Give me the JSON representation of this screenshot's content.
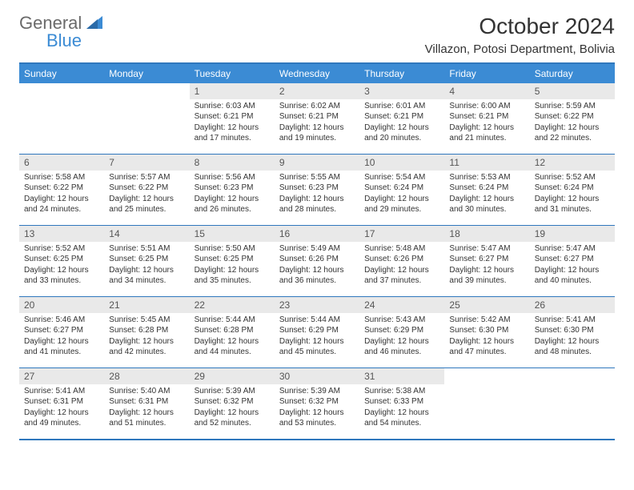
{
  "brand": {
    "part1": "General",
    "part2": "Blue"
  },
  "title": "October 2024",
  "subtitle": "Villazon, Potosi Department, Bolivia",
  "colors": {
    "header_bg": "#3b8bd4",
    "header_border": "#2f77bd",
    "daynum_bg": "#e9e9e9",
    "text": "#333333"
  },
  "day_names": [
    "Sunday",
    "Monday",
    "Tuesday",
    "Wednesday",
    "Thursday",
    "Friday",
    "Saturday"
  ],
  "weeks": [
    [
      {
        "blank": true
      },
      {
        "blank": true
      },
      {
        "n": "1",
        "sunrise": "Sunrise: 6:03 AM",
        "sunset": "Sunset: 6:21 PM",
        "daylight": "Daylight: 12 hours and 17 minutes."
      },
      {
        "n": "2",
        "sunrise": "Sunrise: 6:02 AM",
        "sunset": "Sunset: 6:21 PM",
        "daylight": "Daylight: 12 hours and 19 minutes."
      },
      {
        "n": "3",
        "sunrise": "Sunrise: 6:01 AM",
        "sunset": "Sunset: 6:21 PM",
        "daylight": "Daylight: 12 hours and 20 minutes."
      },
      {
        "n": "4",
        "sunrise": "Sunrise: 6:00 AM",
        "sunset": "Sunset: 6:21 PM",
        "daylight": "Daylight: 12 hours and 21 minutes."
      },
      {
        "n": "5",
        "sunrise": "Sunrise: 5:59 AM",
        "sunset": "Sunset: 6:22 PM",
        "daylight": "Daylight: 12 hours and 22 minutes."
      }
    ],
    [
      {
        "n": "6",
        "sunrise": "Sunrise: 5:58 AM",
        "sunset": "Sunset: 6:22 PM",
        "daylight": "Daylight: 12 hours and 24 minutes."
      },
      {
        "n": "7",
        "sunrise": "Sunrise: 5:57 AM",
        "sunset": "Sunset: 6:22 PM",
        "daylight": "Daylight: 12 hours and 25 minutes."
      },
      {
        "n": "8",
        "sunrise": "Sunrise: 5:56 AM",
        "sunset": "Sunset: 6:23 PM",
        "daylight": "Daylight: 12 hours and 26 minutes."
      },
      {
        "n": "9",
        "sunrise": "Sunrise: 5:55 AM",
        "sunset": "Sunset: 6:23 PM",
        "daylight": "Daylight: 12 hours and 28 minutes."
      },
      {
        "n": "10",
        "sunrise": "Sunrise: 5:54 AM",
        "sunset": "Sunset: 6:24 PM",
        "daylight": "Daylight: 12 hours and 29 minutes."
      },
      {
        "n": "11",
        "sunrise": "Sunrise: 5:53 AM",
        "sunset": "Sunset: 6:24 PM",
        "daylight": "Daylight: 12 hours and 30 minutes."
      },
      {
        "n": "12",
        "sunrise": "Sunrise: 5:52 AM",
        "sunset": "Sunset: 6:24 PM",
        "daylight": "Daylight: 12 hours and 31 minutes."
      }
    ],
    [
      {
        "n": "13",
        "sunrise": "Sunrise: 5:52 AM",
        "sunset": "Sunset: 6:25 PM",
        "daylight": "Daylight: 12 hours and 33 minutes."
      },
      {
        "n": "14",
        "sunrise": "Sunrise: 5:51 AM",
        "sunset": "Sunset: 6:25 PM",
        "daylight": "Daylight: 12 hours and 34 minutes."
      },
      {
        "n": "15",
        "sunrise": "Sunrise: 5:50 AM",
        "sunset": "Sunset: 6:25 PM",
        "daylight": "Daylight: 12 hours and 35 minutes."
      },
      {
        "n": "16",
        "sunrise": "Sunrise: 5:49 AM",
        "sunset": "Sunset: 6:26 PM",
        "daylight": "Daylight: 12 hours and 36 minutes."
      },
      {
        "n": "17",
        "sunrise": "Sunrise: 5:48 AM",
        "sunset": "Sunset: 6:26 PM",
        "daylight": "Daylight: 12 hours and 37 minutes."
      },
      {
        "n": "18",
        "sunrise": "Sunrise: 5:47 AM",
        "sunset": "Sunset: 6:27 PM",
        "daylight": "Daylight: 12 hours and 39 minutes."
      },
      {
        "n": "19",
        "sunrise": "Sunrise: 5:47 AM",
        "sunset": "Sunset: 6:27 PM",
        "daylight": "Daylight: 12 hours and 40 minutes."
      }
    ],
    [
      {
        "n": "20",
        "sunrise": "Sunrise: 5:46 AM",
        "sunset": "Sunset: 6:27 PM",
        "daylight": "Daylight: 12 hours and 41 minutes."
      },
      {
        "n": "21",
        "sunrise": "Sunrise: 5:45 AM",
        "sunset": "Sunset: 6:28 PM",
        "daylight": "Daylight: 12 hours and 42 minutes."
      },
      {
        "n": "22",
        "sunrise": "Sunrise: 5:44 AM",
        "sunset": "Sunset: 6:28 PM",
        "daylight": "Daylight: 12 hours and 44 minutes."
      },
      {
        "n": "23",
        "sunrise": "Sunrise: 5:44 AM",
        "sunset": "Sunset: 6:29 PM",
        "daylight": "Daylight: 12 hours and 45 minutes."
      },
      {
        "n": "24",
        "sunrise": "Sunrise: 5:43 AM",
        "sunset": "Sunset: 6:29 PM",
        "daylight": "Daylight: 12 hours and 46 minutes."
      },
      {
        "n": "25",
        "sunrise": "Sunrise: 5:42 AM",
        "sunset": "Sunset: 6:30 PM",
        "daylight": "Daylight: 12 hours and 47 minutes."
      },
      {
        "n": "26",
        "sunrise": "Sunrise: 5:41 AM",
        "sunset": "Sunset: 6:30 PM",
        "daylight": "Daylight: 12 hours and 48 minutes."
      }
    ],
    [
      {
        "n": "27",
        "sunrise": "Sunrise: 5:41 AM",
        "sunset": "Sunset: 6:31 PM",
        "daylight": "Daylight: 12 hours and 49 minutes."
      },
      {
        "n": "28",
        "sunrise": "Sunrise: 5:40 AM",
        "sunset": "Sunset: 6:31 PM",
        "daylight": "Daylight: 12 hours and 51 minutes."
      },
      {
        "n": "29",
        "sunrise": "Sunrise: 5:39 AM",
        "sunset": "Sunset: 6:32 PM",
        "daylight": "Daylight: 12 hours and 52 minutes."
      },
      {
        "n": "30",
        "sunrise": "Sunrise: 5:39 AM",
        "sunset": "Sunset: 6:32 PM",
        "daylight": "Daylight: 12 hours and 53 minutes."
      },
      {
        "n": "31",
        "sunrise": "Sunrise: 5:38 AM",
        "sunset": "Sunset: 6:33 PM",
        "daylight": "Daylight: 12 hours and 54 minutes."
      },
      {
        "blank": true
      },
      {
        "blank": true
      }
    ]
  ]
}
